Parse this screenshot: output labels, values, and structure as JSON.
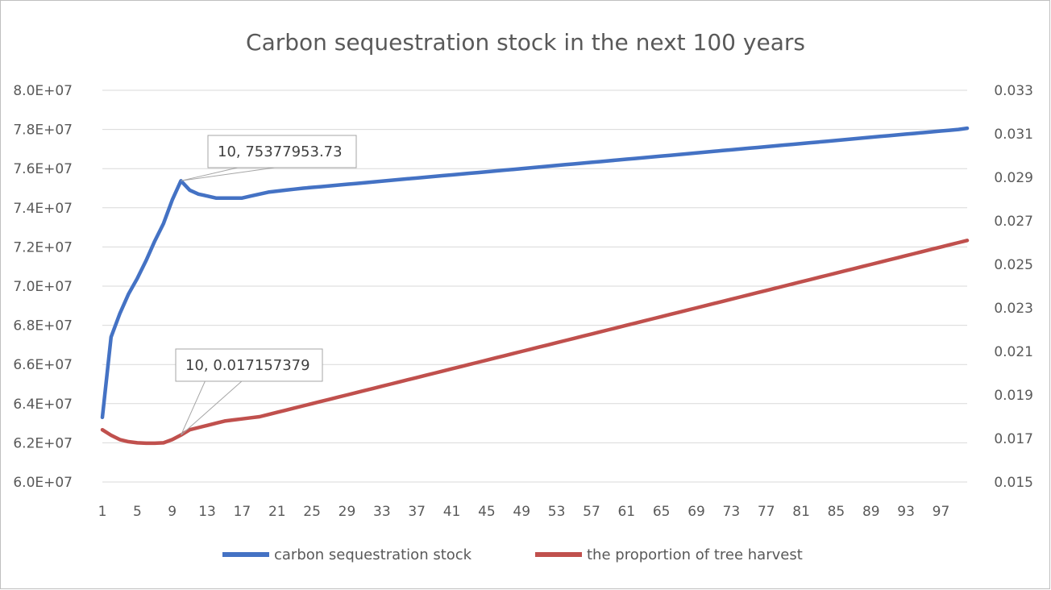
{
  "chart_data": {
    "type": "line",
    "title": "Carbon sequestration stock in the next 100 years",
    "xlabel": "",
    "ylabel": "",
    "x": [
      1,
      2,
      3,
      4,
      5,
      6,
      7,
      8,
      9,
      10,
      11,
      12,
      13,
      14,
      15,
      16,
      17,
      18,
      19,
      20,
      21,
      22,
      23,
      24,
      25,
      26,
      27,
      28,
      29,
      30,
      31,
      32,
      33,
      34,
      35,
      36,
      37,
      38,
      39,
      40,
      41,
      42,
      43,
      44,
      45,
      46,
      47,
      48,
      49,
      50,
      51,
      52,
      53,
      54,
      55,
      56,
      57,
      58,
      59,
      60,
      61,
      62,
      63,
      64,
      65,
      66,
      67,
      68,
      69,
      70,
      71,
      72,
      73,
      74,
      75,
      76,
      77,
      78,
      79,
      80,
      81,
      82,
      83,
      84,
      85,
      86,
      87,
      88,
      89,
      90,
      91,
      92,
      93,
      94,
      95,
      96,
      97,
      98,
      99,
      100
    ],
    "x_ticks": [
      "1",
      "5",
      "9",
      "13",
      "17",
      "21",
      "25",
      "29",
      "33",
      "37",
      "41",
      "45",
      "49",
      "53",
      "57",
      "61",
      "65",
      "69",
      "73",
      "77",
      "81",
      "85",
      "89",
      "93",
      "97"
    ],
    "ylim_left": [
      60000000,
      80000000
    ],
    "y_ticks_left": [
      "6.0E+07",
      "6.2E+07",
      "6.4E+07",
      "6.6E+07",
      "6.8E+07",
      "7.0E+07",
      "7.2E+07",
      "7.4E+07",
      "7.6E+07",
      "7.8E+07",
      "8.0E+07"
    ],
    "ylim_right": [
      0.015,
      0.033
    ],
    "y_ticks_right": [
      "0.015",
      "0.017",
      "0.019",
      "0.021",
      "0.023",
      "0.025",
      "0.027",
      "0.029",
      "0.031",
      "0.033"
    ],
    "grid": true,
    "legend_position": "bottom",
    "series": [
      {
        "name": "carbon sequestration stock",
        "axis": "left",
        "color": "#4472c4",
        "values": [
          63300000,
          67400000,
          68600000,
          69600000,
          70400000,
          71300000,
          72300000,
          73200000,
          74400000,
          75377953.73,
          74900000,
          74700000,
          74600000,
          74500000,
          74500000,
          74500000,
          74500000,
          74600000,
          74700000,
          74800000,
          74850000,
          74900000,
          74950000,
          75000000,
          75040000,
          75080000,
          75120000,
          75160000,
          75200000,
          75240000,
          75280000,
          75320000,
          75360000,
          75400000,
          75440000,
          75480000,
          75520000,
          75560000,
          75600000,
          75640000,
          75680000,
          75720000,
          75760000,
          75800000,
          75840000,
          75880000,
          75920000,
          75960000,
          76000000,
          76040000,
          76080000,
          76120000,
          76160000,
          76200000,
          76240000,
          76280000,
          76320000,
          76360000,
          76400000,
          76440000,
          76480000,
          76520000,
          76560000,
          76600000,
          76640000,
          76680000,
          76720000,
          76760000,
          76800000,
          76840000,
          76880000,
          76920000,
          76960000,
          77000000,
          77040000,
          77080000,
          77120000,
          77160000,
          77200000,
          77240000,
          77280000,
          77320000,
          77360000,
          77400000,
          77440000,
          77480000,
          77520000,
          77560000,
          77600000,
          77640000,
          77680000,
          77720000,
          77760000,
          77800000,
          77840000,
          77880000,
          77920000,
          77960000,
          78000000,
          78060000
        ]
      },
      {
        "name": "the proportion of tree harvest",
        "axis": "right",
        "color": "#c0504d",
        "values": [
          0.0174,
          0.01715,
          0.01695,
          0.01685,
          0.0168,
          0.01678,
          0.01678,
          0.0168,
          0.01695,
          0.017157379,
          0.0174,
          0.0175,
          0.0176,
          0.0177,
          0.0178,
          0.01785,
          0.0179,
          0.01795,
          0.018,
          0.0181,
          0.0182,
          0.0183,
          0.0184,
          0.0185,
          0.0186,
          0.0187,
          0.0188,
          0.0189,
          0.019,
          0.0191,
          0.0192,
          0.0193,
          0.0194,
          0.0195,
          0.0196,
          0.0197,
          0.0198,
          0.0199,
          0.02,
          0.0201,
          0.0202,
          0.0203,
          0.0204,
          0.0205,
          0.0206,
          0.0207,
          0.0208,
          0.0209,
          0.021,
          0.0211,
          0.0212,
          0.0213,
          0.0214,
          0.0215,
          0.0216,
          0.0217,
          0.0218,
          0.0219,
          0.022,
          0.0221,
          0.0222,
          0.0223,
          0.0224,
          0.0225,
          0.0226,
          0.0227,
          0.0228,
          0.0229,
          0.023,
          0.0231,
          0.0232,
          0.0233,
          0.0234,
          0.0235,
          0.0236,
          0.0237,
          0.0238,
          0.0239,
          0.024,
          0.0241,
          0.0242,
          0.0243,
          0.0244,
          0.0245,
          0.0246,
          0.0247,
          0.0248,
          0.0249,
          0.025,
          0.0251,
          0.0252,
          0.0253,
          0.0254,
          0.0255,
          0.0256,
          0.0257,
          0.0258,
          0.0259,
          0.026,
          0.0261
        ]
      }
    ],
    "annotations": [
      {
        "series": 0,
        "x": 10,
        "text": "10, 75377953.73"
      },
      {
        "series": 1,
        "x": 10,
        "text": "10, 0.017157379"
      }
    ]
  }
}
